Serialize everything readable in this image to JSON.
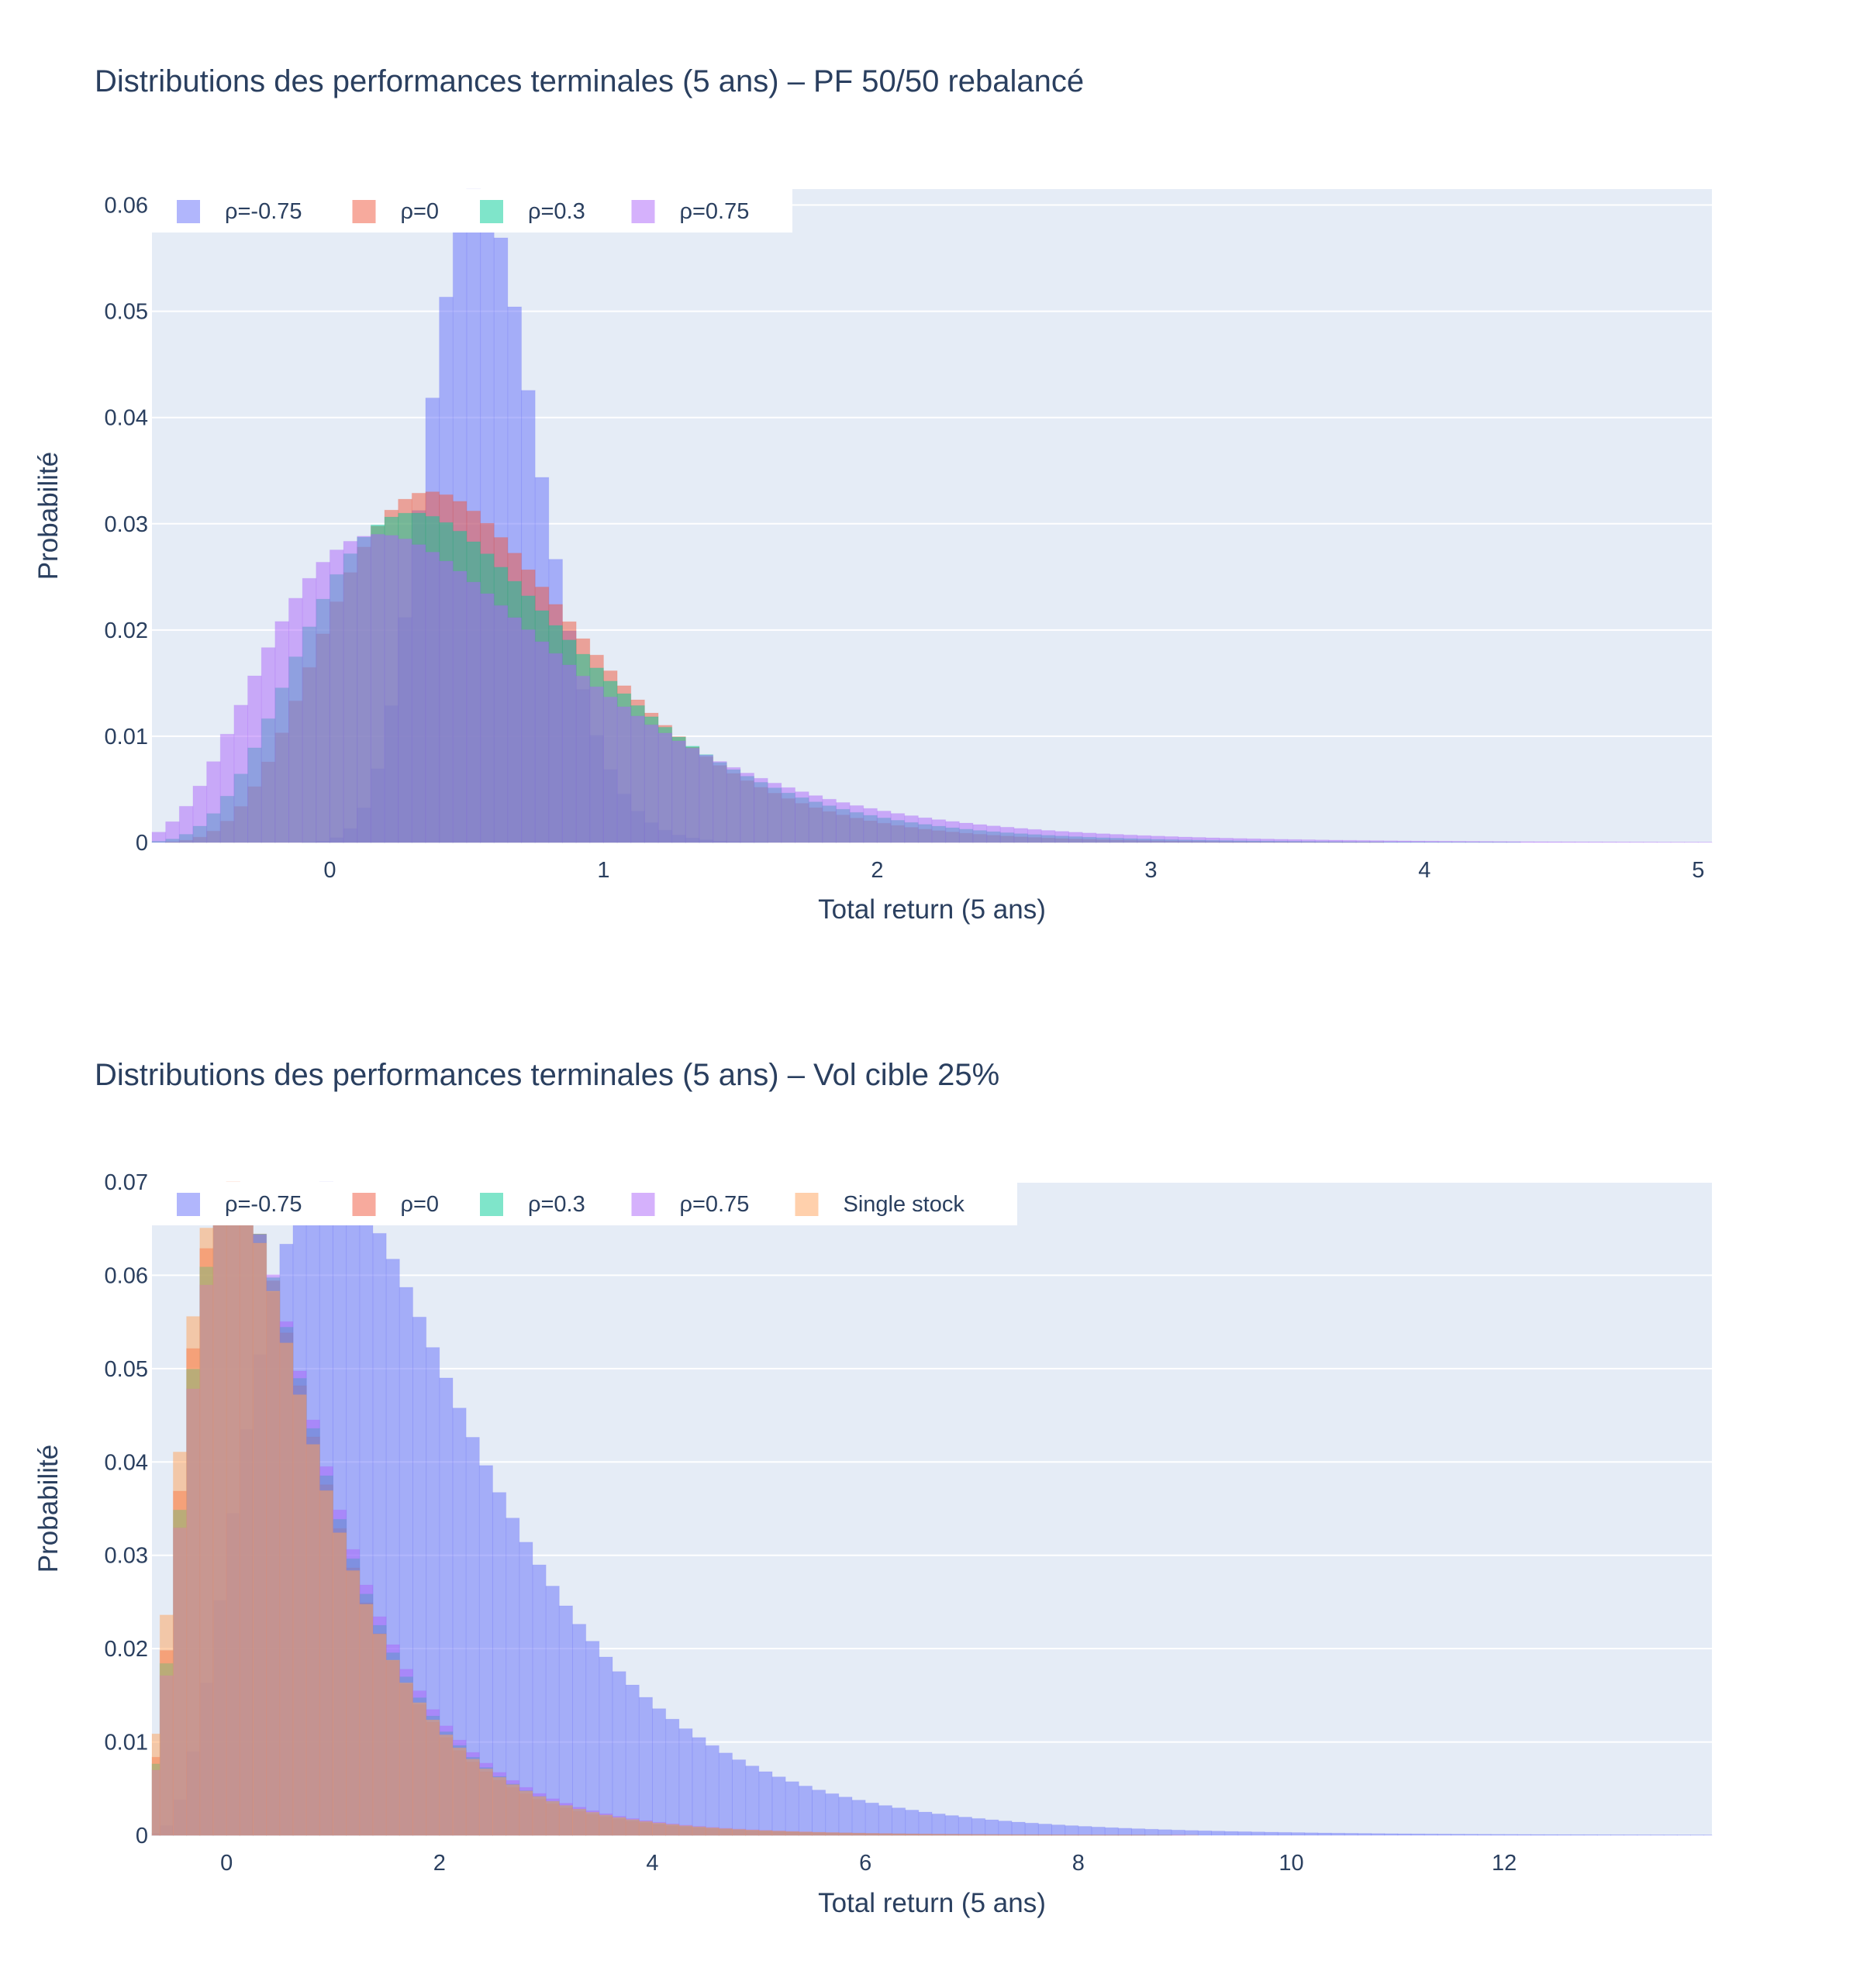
{
  "colors": {
    "plot_bg": "#e5ecf6",
    "grid": "#ffffff",
    "text": "#2a3f5f",
    "page_bg": "#ffffff"
  },
  "chart_data": [
    {
      "type": "histogram",
      "title": "Distributions des performances terminales (5 ans) – PF 50/50 rebalancé",
      "xlabel": "Total return (5 ans)",
      "ylabel": "Probabilité",
      "xlim": [
        -0.65,
        5.05
      ],
      "ylim": [
        0,
        0.0615
      ],
      "xticks": [
        0,
        1,
        2,
        3,
        4,
        5
      ],
      "xtick_labels": [
        "0",
        "1",
        "2",
        "3",
        "4",
        "5"
      ],
      "yticks": [
        0,
        0.01,
        0.02,
        0.03,
        0.04,
        0.05,
        0.06
      ],
      "ytick_labels": [
        "0",
        "0.01",
        "0.02",
        "0.03",
        "0.04",
        "0.05",
        "0.06"
      ],
      "grid": true,
      "legend_position": "top-left",
      "bin_width": 0.05,
      "opacity": 0.5,
      "series": [
        {
          "name": "ρ=-0.75",
          "color": "#636efa",
          "dist": {
            "kind": "lognormal",
            "shift": -1,
            "mu": 0.45,
            "sigma": 0.13
          },
          "peak": 0.0615
        },
        {
          "name": "ρ=0",
          "color": "#ef553b",
          "dist": {
            "kind": "lognormal",
            "shift": -1,
            "mu": 0.42,
            "sigma": 0.33
          },
          "peak": 0.033
        },
        {
          "name": "ρ=0.3",
          "color": "#00cc96",
          "dist": {
            "kind": "lognormal",
            "shift": -1,
            "mu": 0.4,
            "sigma": 0.37
          },
          "peak": 0.031
        },
        {
          "name": "ρ=0.75",
          "color": "#ab63fa",
          "dist": {
            "kind": "lognormal",
            "shift": -1,
            "mu": 0.36,
            "sigma": 0.44
          },
          "peak": 0.029
        }
      ]
    },
    {
      "type": "histogram",
      "title": "Distributions des performances terminales (5 ans) – Vol cible 25%",
      "xlabel": "Total return (5 ans)",
      "ylabel": "Probabilité",
      "xlim": [
        -0.7,
        13.95
      ],
      "ylim": [
        0,
        0.07
      ],
      "xticks": [
        0,
        2,
        4,
        6,
        8,
        10,
        12
      ],
      "xtick_labels": [
        "0",
        "2",
        "4",
        "6",
        "8",
        "10",
        "12"
      ],
      "yticks": [
        0,
        0.01,
        0.02,
        0.03,
        0.04,
        0.05,
        0.06,
        0.07
      ],
      "ytick_labels": [
        "0",
        "0.01",
        "0.02",
        "0.03",
        "0.04",
        "0.05",
        "0.06",
        "0.07"
      ],
      "grid": true,
      "legend_position": "top-left",
      "bin_width": 0.125,
      "opacity": 0.5,
      "series": [
        {
          "name": "ρ=-0.75",
          "color": "#636efa",
          "dist": {
            "kind": "lognormal",
            "shift": -1,
            "mu": 0.95,
            "sigma": 0.52
          },
          "peak": 0.07
        },
        {
          "name": "ρ=0",
          "color": "#ef553b",
          "dist": {
            "kind": "lognormal",
            "shift": -1,
            "mu": 0.35,
            "sigma": 0.55
          },
          "peak": 0.07
        },
        {
          "name": "ρ=0.3",
          "color": "#00cc96",
          "dist": {
            "kind": "lognormal",
            "shift": -1,
            "mu": 0.37,
            "sigma": 0.55
          },
          "peak": 0.069
        },
        {
          "name": "ρ=0.75",
          "color": "#ab63fa",
          "dist": {
            "kind": "lognormal",
            "shift": -1,
            "mu": 0.39,
            "sigma": 0.55
          },
          "peak": 0.068
        },
        {
          "name": "Single stock",
          "color": "#ffa15a",
          "dist": {
            "kind": "lognormal",
            "shift": -1,
            "mu": 0.34,
            "sigma": 0.57
          },
          "peak": 0.07
        }
      ]
    }
  ]
}
